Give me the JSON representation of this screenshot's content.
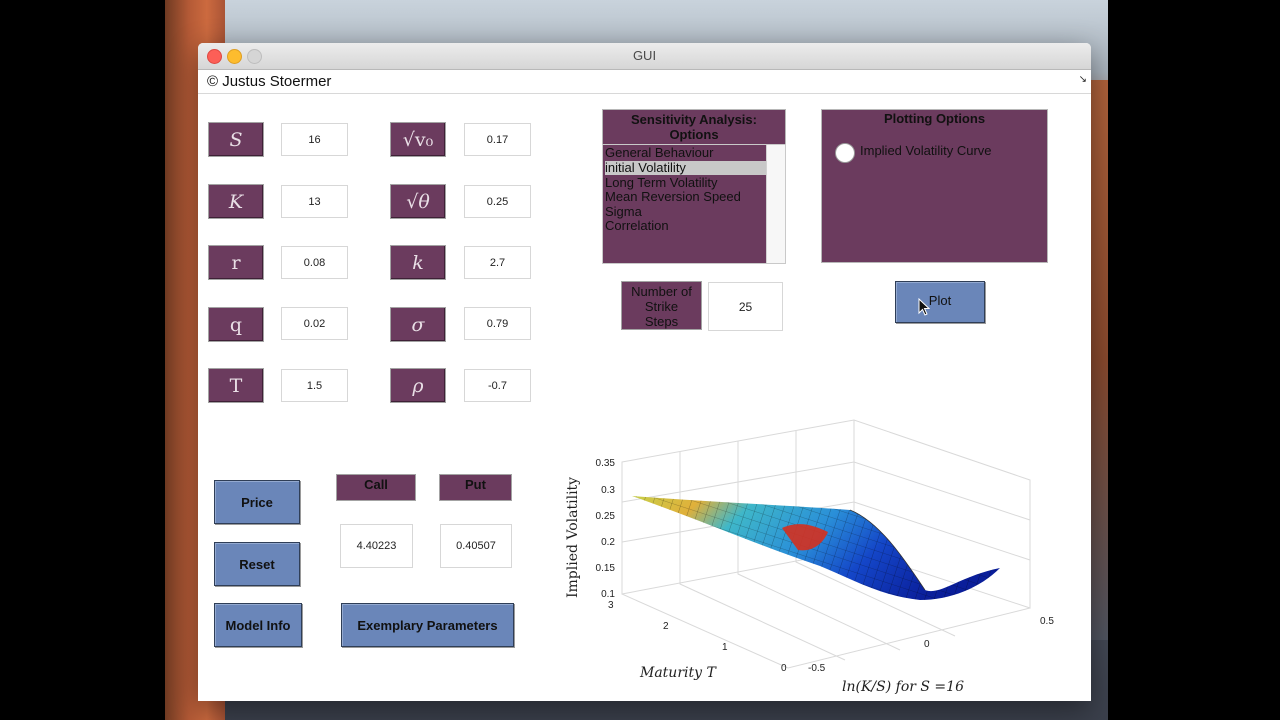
{
  "window": {
    "title": "GUI",
    "menu_text": "© Justus Stoermer"
  },
  "parameters": {
    "left": [
      {
        "symbol": "S",
        "value": "16"
      },
      {
        "symbol": "K",
        "value": "13"
      },
      {
        "symbol": "r",
        "value": "0.08"
      },
      {
        "symbol": "q",
        "value": "0.02"
      },
      {
        "symbol": "T",
        "value": "1.5"
      }
    ],
    "right": [
      {
        "symbol": "√v₀",
        "value": "0.17"
      },
      {
        "symbol": "√θ",
        "value": "0.25"
      },
      {
        "symbol": "k",
        "value": "2.7"
      },
      {
        "symbol": "σ",
        "value": "0.79"
      },
      {
        "symbol": "ρ",
        "value": "-0.7"
      }
    ]
  },
  "sensitivity": {
    "title_line1": "Sensitivity Analysis:",
    "title_line2": "Options",
    "options": [
      "General Behaviour",
      "initial Volatility",
      "Long Term Volatility",
      "Mean Reversion Speed",
      "Sigma",
      "Correlation"
    ],
    "selected_index": 1
  },
  "plotting": {
    "title": "Plotting Options",
    "radio_label": "Implied Volatility Curve",
    "radio_selected": false
  },
  "strike_steps": {
    "label_line1": "Number of",
    "label_line2": "Strike",
    "label_line3": "Steps",
    "value": "25"
  },
  "buttons": {
    "plot": "Plot",
    "price": "Price",
    "reset": "Reset",
    "model_info": "Model Info",
    "exemplary": "Exemplary Parameters"
  },
  "results": {
    "call_label": "Call",
    "call_value": "4.40223",
    "put_label": "Put",
    "put_value": "0.40507"
  },
  "chart_data": {
    "type": "surface",
    "zlabel": "Implied Volatility",
    "ylabel": "Maturity T",
    "xlabel": "ln(K/S) for S =16",
    "z_ticks": [
      "0.35",
      "0.3",
      "0.25",
      "0.2",
      "0.15",
      "0.1"
    ],
    "maturity_ticks": [
      "3",
      "2",
      "1",
      "0"
    ],
    "moneyness_ticks": [
      "-0.5",
      "0",
      "0.5"
    ],
    "zlim": [
      0.1,
      0.35
    ],
    "maturity_range": [
      0,
      3
    ],
    "moneyness_range": [
      -0.5,
      0.5
    ],
    "grid": true,
    "colormap": "jet"
  }
}
